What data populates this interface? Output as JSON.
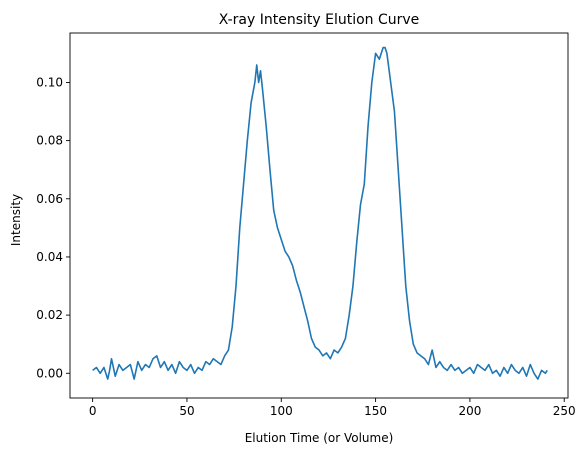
{
  "chart_data": {
    "type": "line",
    "title": "X-ray Intensity Elution Curve",
    "xlabel": "Elution Time (or Volume)",
    "ylabel": "Intensity",
    "xlim": [
      -12,
      252
    ],
    "ylim": [
      -0.0085,
      0.117
    ],
    "xticks": [
      0,
      50,
      100,
      150,
      200,
      250
    ],
    "yticks": [
      0.0,
      0.02,
      0.04,
      0.06,
      0.08,
      0.1
    ],
    "ytick_labels": [
      "0.00",
      "0.02",
      "0.04",
      "0.06",
      "0.08",
      "0.10"
    ],
    "grid": false,
    "legend": null,
    "series": [
      {
        "color": "#1f77b4",
        "x": [
          0,
          2,
          4,
          6,
          8,
          9,
          10,
          12,
          14,
          16,
          18,
          20,
          22,
          24,
          26,
          28,
          30,
          32,
          34,
          36,
          38,
          40,
          42,
          44,
          46,
          48,
          50,
          52,
          54,
          56,
          58,
          60,
          62,
          64,
          66,
          68,
          70,
          72,
          74,
          76,
          78,
          80,
          82,
          84,
          86,
          87,
          88,
          89,
          90,
          92,
          94,
          96,
          98,
          100,
          102,
          104,
          106,
          108,
          110,
          112,
          114,
          116,
          118,
          120,
          122,
          124,
          126,
          128,
          130,
          132,
          134,
          136,
          138,
          140,
          142,
          144,
          146,
          148,
          150,
          152,
          154,
          155,
          156,
          157,
          158,
          160,
          162,
          164,
          166,
          168,
          170,
          172,
          174,
          176,
          178,
          180,
          182,
          184,
          186,
          188,
          190,
          192,
          194,
          196,
          198,
          200,
          202,
          204,
          206,
          208,
          210,
          212,
          214,
          216,
          218,
          220,
          222,
          224,
          226,
          228,
          230,
          232,
          234,
          236,
          238,
          240,
          241
        ],
        "y": [
          0.001,
          0.002,
          0.0,
          0.002,
          -0.002,
          0.001,
          0.005,
          -0.001,
          0.003,
          0.001,
          0.002,
          0.003,
          -0.002,
          0.004,
          0.001,
          0.003,
          0.002,
          0.005,
          0.006,
          0.002,
          0.004,
          0.001,
          0.003,
          0.0,
          0.004,
          0.002,
          0.001,
          0.003,
          0.0,
          0.002,
          0.001,
          0.004,
          0.003,
          0.005,
          0.004,
          0.003,
          0.006,
          0.008,
          0.016,
          0.03,
          0.05,
          0.065,
          0.08,
          0.093,
          0.1,
          0.106,
          0.1,
          0.104,
          0.098,
          0.085,
          0.07,
          0.056,
          0.05,
          0.046,
          0.042,
          0.04,
          0.037,
          0.032,
          0.028,
          0.023,
          0.018,
          0.012,
          0.009,
          0.008,
          0.006,
          0.007,
          0.005,
          0.008,
          0.007,
          0.009,
          0.012,
          0.02,
          0.03,
          0.045,
          0.058,
          0.065,
          0.085,
          0.1,
          0.11,
          0.108,
          0.112,
          0.112,
          0.11,
          0.105,
          0.1,
          0.09,
          0.07,
          0.05,
          0.03,
          0.018,
          0.01,
          0.007,
          0.006,
          0.005,
          0.003,
          0.008,
          0.002,
          0.004,
          0.002,
          0.001,
          0.003,
          0.001,
          0.002,
          0.0,
          0.001,
          0.002,
          0.0,
          0.003,
          0.002,
          0.001,
          0.003,
          0.0,
          0.001,
          -0.001,
          0.002,
          0.0,
          0.003,
          0.001,
          0.0,
          0.002,
          -0.001,
          0.003,
          0.0,
          -0.002,
          0.001,
          0.0,
          0.001
        ]
      }
    ]
  }
}
